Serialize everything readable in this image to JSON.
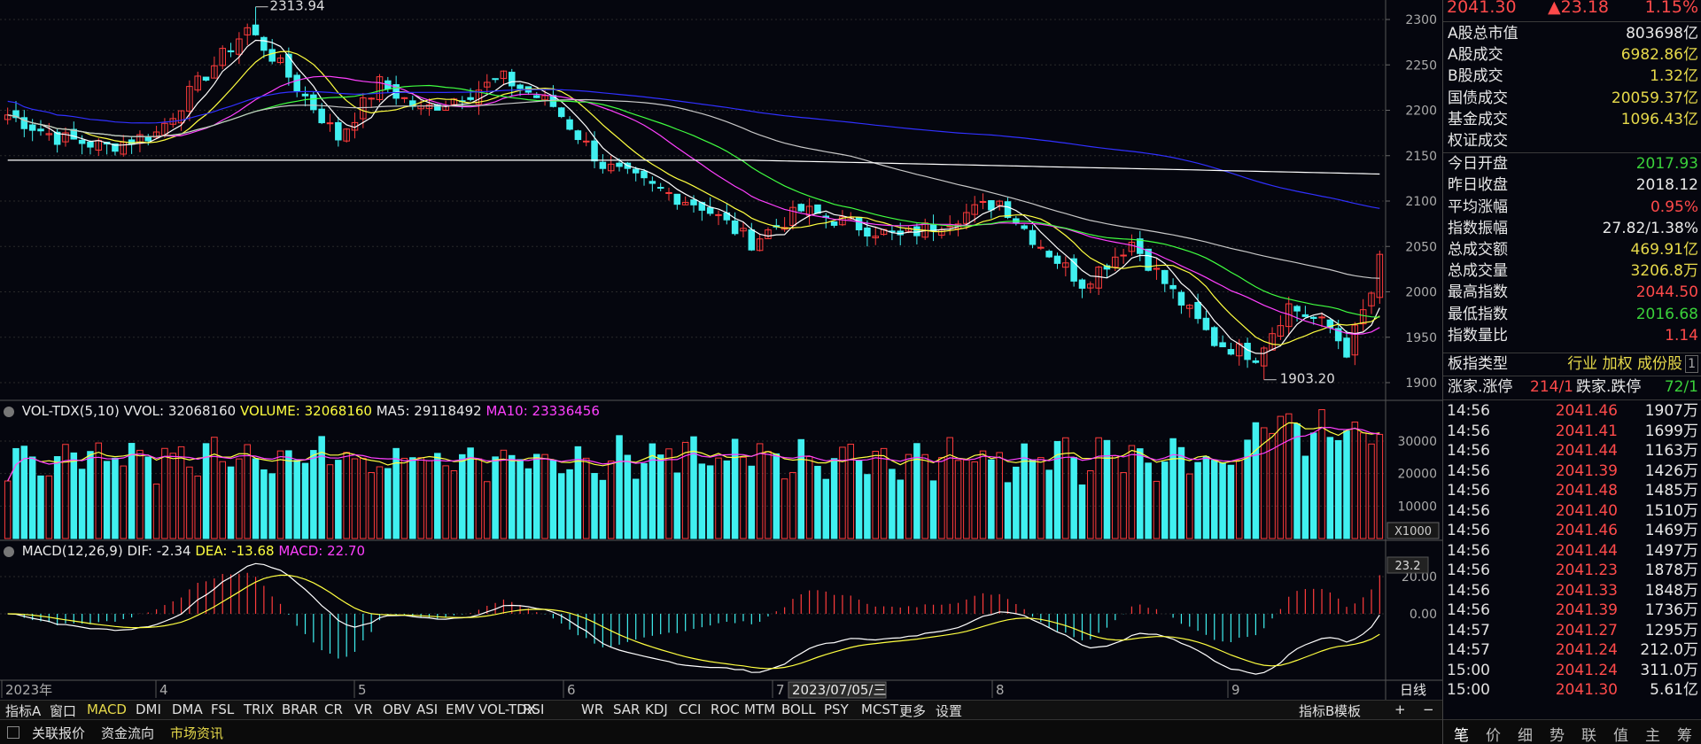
{
  "price_header": {
    "price": "2041.30",
    "change": "▲23.18",
    "pct": "1.15%"
  },
  "stats": [
    {
      "k": "A股总市值",
      "v": "803698亿",
      "c": "#e8e8e8"
    },
    {
      "k": "A股成交",
      "v": "6982.86亿",
      "c": "#e6d94a"
    },
    {
      "k": "B股成交",
      "v": "1.32亿",
      "c": "#e6d94a"
    },
    {
      "k": "国债成交",
      "v": "20059.37亿",
      "c": "#e6d94a"
    },
    {
      "k": "基金成交",
      "v": "1096.43亿",
      "c": "#e6d94a"
    },
    {
      "k": "权证成交",
      "v": "",
      "c": "#e6d94a"
    },
    {
      "k": "今日开盘",
      "v": "2017.93",
      "c": "#3ad13a"
    },
    {
      "k": "昨日收盘",
      "v": "2018.12",
      "c": "#e8e8e8"
    },
    {
      "k": "平均涨幅",
      "v": "0.95%",
      "c": "#ff4a4a"
    },
    {
      "k": "指数振幅",
      "v": "27.82/1.38%",
      "c": "#e8e8e8"
    },
    {
      "k": "总成交额",
      "v": "469.91亿",
      "c": "#e6d94a"
    },
    {
      "k": "总成交量",
      "v": "3206.8万",
      "c": "#e6d94a"
    },
    {
      "k": "最高指数",
      "v": "2044.50",
      "c": "#ff4a4a"
    },
    {
      "k": "最低指数",
      "v": "2016.68",
      "c": "#3ad13a"
    },
    {
      "k": "指数量比",
      "v": "1.14",
      "c": "#ff4a4a"
    }
  ],
  "board_type": {
    "label": "板指类型",
    "value": "行业 加权 成份股",
    "extra": "1"
  },
  "limit_row": {
    "up_label": "涨家.涨停",
    "up_val": "214/1",
    "down_label": "跌家.跌停",
    "down_val": "72/1"
  },
  "ticks": [
    {
      "t": "14:56",
      "p": "2041.46",
      "q": "1907万"
    },
    {
      "t": "14:56",
      "p": "2041.41",
      "q": "1699万"
    },
    {
      "t": "14:56",
      "p": "2041.44",
      "q": "1163万"
    },
    {
      "t": "14:56",
      "p": "2041.39",
      "q": "1426万"
    },
    {
      "t": "14:56",
      "p": "2041.48",
      "q": "1485万"
    },
    {
      "t": "14:56",
      "p": "2041.40",
      "q": "1510万"
    },
    {
      "t": "14:56",
      "p": "2041.46",
      "q": "1469万"
    },
    {
      "t": "14:56",
      "p": "2041.44",
      "q": "1497万"
    },
    {
      "t": "14:56",
      "p": "2041.23",
      "q": "1878万"
    },
    {
      "t": "14:56",
      "p": "2041.33",
      "q": "1848万"
    },
    {
      "t": "14:56",
      "p": "2041.39",
      "q": "1736万"
    },
    {
      "t": "14:57",
      "p": "2041.27",
      "q": "1295万"
    },
    {
      "t": "14:57",
      "p": "2041.24",
      "q": "212.0万"
    },
    {
      "t": "15:00",
      "p": "2041.24",
      "q": "311.0万"
    },
    {
      "t": "15:00",
      "p": "2041.30",
      "q": "5.61亿"
    }
  ],
  "side_tabs": [
    "笔",
    "价",
    "细",
    "势",
    "联",
    "值",
    "主",
    "筹"
  ],
  "vol_panel": {
    "name": "VOL-TDX(5,10)",
    "vvol": "VVOL: 32068160",
    "volume": "VOLUME: 32068160",
    "ma5": "MA5: 29118492",
    "ma10": "MA10: 23336456",
    "unit": "X1000"
  },
  "macd_panel": {
    "name": "MACD(12,26,9)",
    "dif": "DIF: -2.34",
    "dea": "DEA: -13.68",
    "macd": "MACD: 22.70",
    "badge": "23.2"
  },
  "annotations": {
    "high": "2313.94",
    "low": "1903.20",
    "cursor_date": "2023/07/05/三",
    "period": "日线"
  },
  "x_axis_labels": [
    "2023年",
    "4",
    "5",
    "6",
    "7",
    "8",
    "9"
  ],
  "price_ticks": [
    "2300",
    "2250",
    "2200",
    "2150",
    "2100",
    "2050",
    "2000",
    "1950",
    "1900"
  ],
  "vol_ticks": [
    "30000",
    "20000",
    "10000"
  ],
  "macd_ticks": [
    "20.00",
    "0.00"
  ],
  "indicator_tabs": [
    "指标A",
    "窗口",
    "MACD",
    "DMI",
    "DMA",
    "FSL",
    "TRIX",
    "BRAR",
    "CR",
    "VR",
    "OBV",
    "ASI",
    "EMV",
    "VOL-TDX",
    "RSI",
    "WR",
    "SAR",
    "KDJ",
    "CCI",
    "ROC",
    "MTM",
    "BOLL",
    "PSY",
    "MCST",
    "更多",
    "设置"
  ],
  "right_tabs": [
    "指标B",
    "模板",
    "+",
    "−"
  ],
  "status_tabs": [
    "关联报价",
    "资金流向",
    "市场资讯"
  ],
  "chart_data": {
    "type": "candlestick",
    "price_range": [
      1900,
      2300
    ],
    "series_colors": {
      "up": "#ff3b3b",
      "down": "#40f0f0",
      "ma5": "#ffffff",
      "ma10": "#ffff40",
      "ma20": "#ff40ff",
      "ma30": "#40ff40",
      "ma60": "#c8c8c8",
      "ma120": "#3030ff",
      "ma250": "#ffffff"
    }
  }
}
